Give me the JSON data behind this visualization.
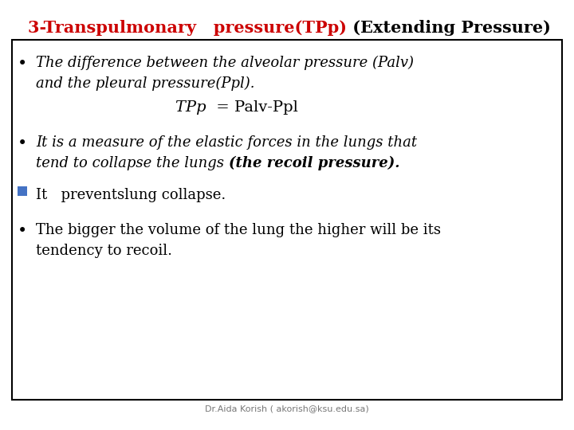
{
  "bg_color": "#ffffff",
  "title_red": "3-Transpulmonary   pressure(TPp)",
  "title_black": " (Extending Pressure)",
  "title_red_color": "#cc0000",
  "title_black_color": "#000000",
  "title_fontsize": 15,
  "box_color": "#000000",
  "bullet1_line1": "The difference between the alveolar pressure (Palv)",
  "bullet1_line2": "and the pleural pressure(Ppl).",
  "bullet1_center_italic": "TPp ",
  "bullet1_center_rest": " = Palv-Ppl",
  "bullet2_line1": "It is a measure of the elastic forces in the lungs that",
  "bullet2_line2_normal": "tend to collapse the lungs ",
  "bullet2_line2_bold": "(the recoil pressure).",
  "square_line": "It   preventslung collapse.",
  "square_color": "#4472c4",
  "bullet3_line1": "The bigger the volume of the lung the higher will be its",
  "bullet3_line2": "tendency to recoil.",
  "footer": "Dr.Aida Korish ( akorish@ksu.edu.sa)",
  "footer_color": "#777777",
  "footer_fontsize": 8
}
